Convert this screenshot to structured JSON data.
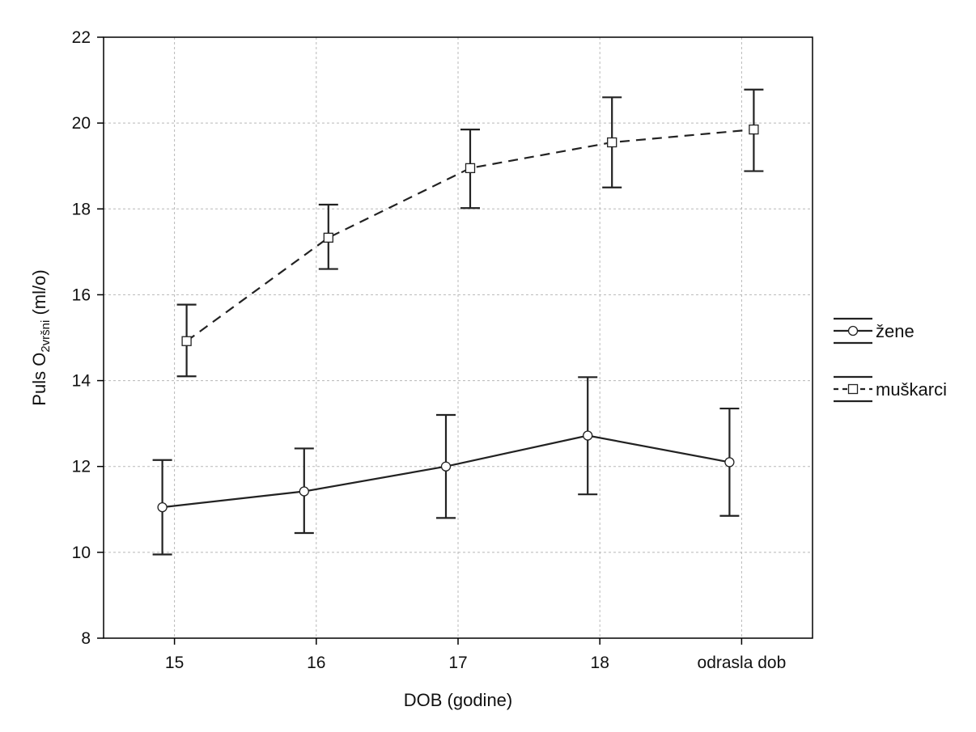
{
  "chart_data": {
    "type": "line",
    "title": "",
    "xlabel": "DOB (godine)",
    "ylabel": {
      "main": "Puls O",
      "subscript": "2vršni",
      "suffix": " (ml/o)"
    },
    "categories": [
      "15",
      "16",
      "17",
      "18",
      "odrasla dob"
    ],
    "ylim": [
      8,
      22
    ],
    "yticks": [
      8,
      10,
      12,
      14,
      16,
      18,
      20,
      22
    ],
    "grid": true,
    "error_bars": true,
    "legend_position": "right",
    "series": [
      {
        "name": "žene",
        "line_style": "solid",
        "marker": "circle",
        "values": [
          11.05,
          11.42,
          12.0,
          12.72,
          12.1
        ],
        "lower": [
          9.95,
          10.45,
          10.8,
          11.35,
          10.85
        ],
        "upper": [
          12.15,
          12.42,
          13.2,
          14.08,
          13.35
        ]
      },
      {
        "name": "muškarci",
        "line_style": "dashed",
        "marker": "square",
        "values": [
          14.92,
          17.33,
          18.95,
          19.55,
          19.85
        ],
        "lower": [
          14.1,
          16.6,
          18.02,
          18.5,
          18.88
        ],
        "upper": [
          15.77,
          18.1,
          19.85,
          20.6,
          20.78
        ]
      }
    ]
  }
}
